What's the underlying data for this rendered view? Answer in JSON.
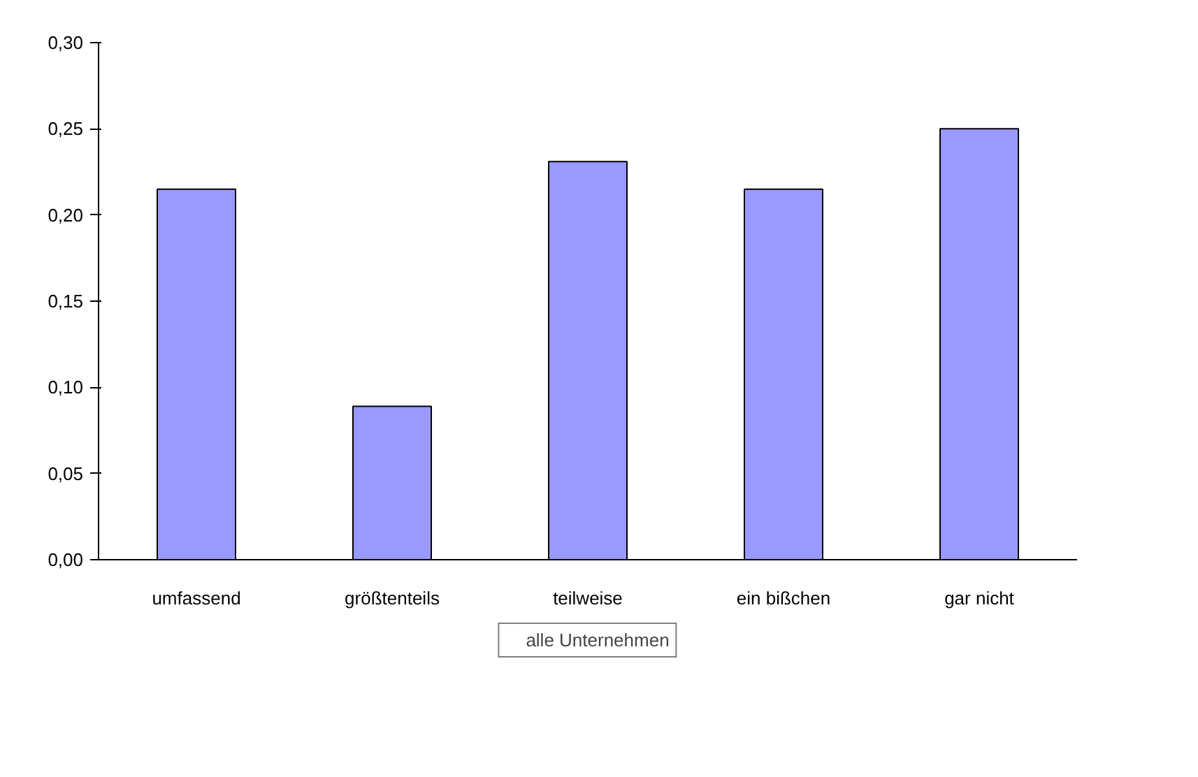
{
  "chart_data": {
    "type": "bar",
    "categories": [
      "umfassend",
      "größtenteils",
      "teilweise",
      "ein bißchen",
      "gar nicht"
    ],
    "series": [
      {
        "name": "alle Unternehmen",
        "color": "#9999ff",
        "values": [
          0.215,
          0.089,
          0.231,
          0.215,
          0.25
        ]
      }
    ],
    "ylim": [
      0,
      0.3
    ],
    "yticks": [
      {
        "value": 0,
        "label": "0,00"
      },
      {
        "value": 0.05,
        "label": "0,05"
      },
      {
        "value": 0.1,
        "label": "0,10"
      },
      {
        "value": 0.15,
        "label": "0,15"
      },
      {
        "value": 0.2,
        "label": "0,20"
      },
      {
        "value": 0.25,
        "label": "0,25"
      },
      {
        "value": 0.3,
        "label": "0,30"
      }
    ],
    "grid": false,
    "legend": "bottom"
  }
}
